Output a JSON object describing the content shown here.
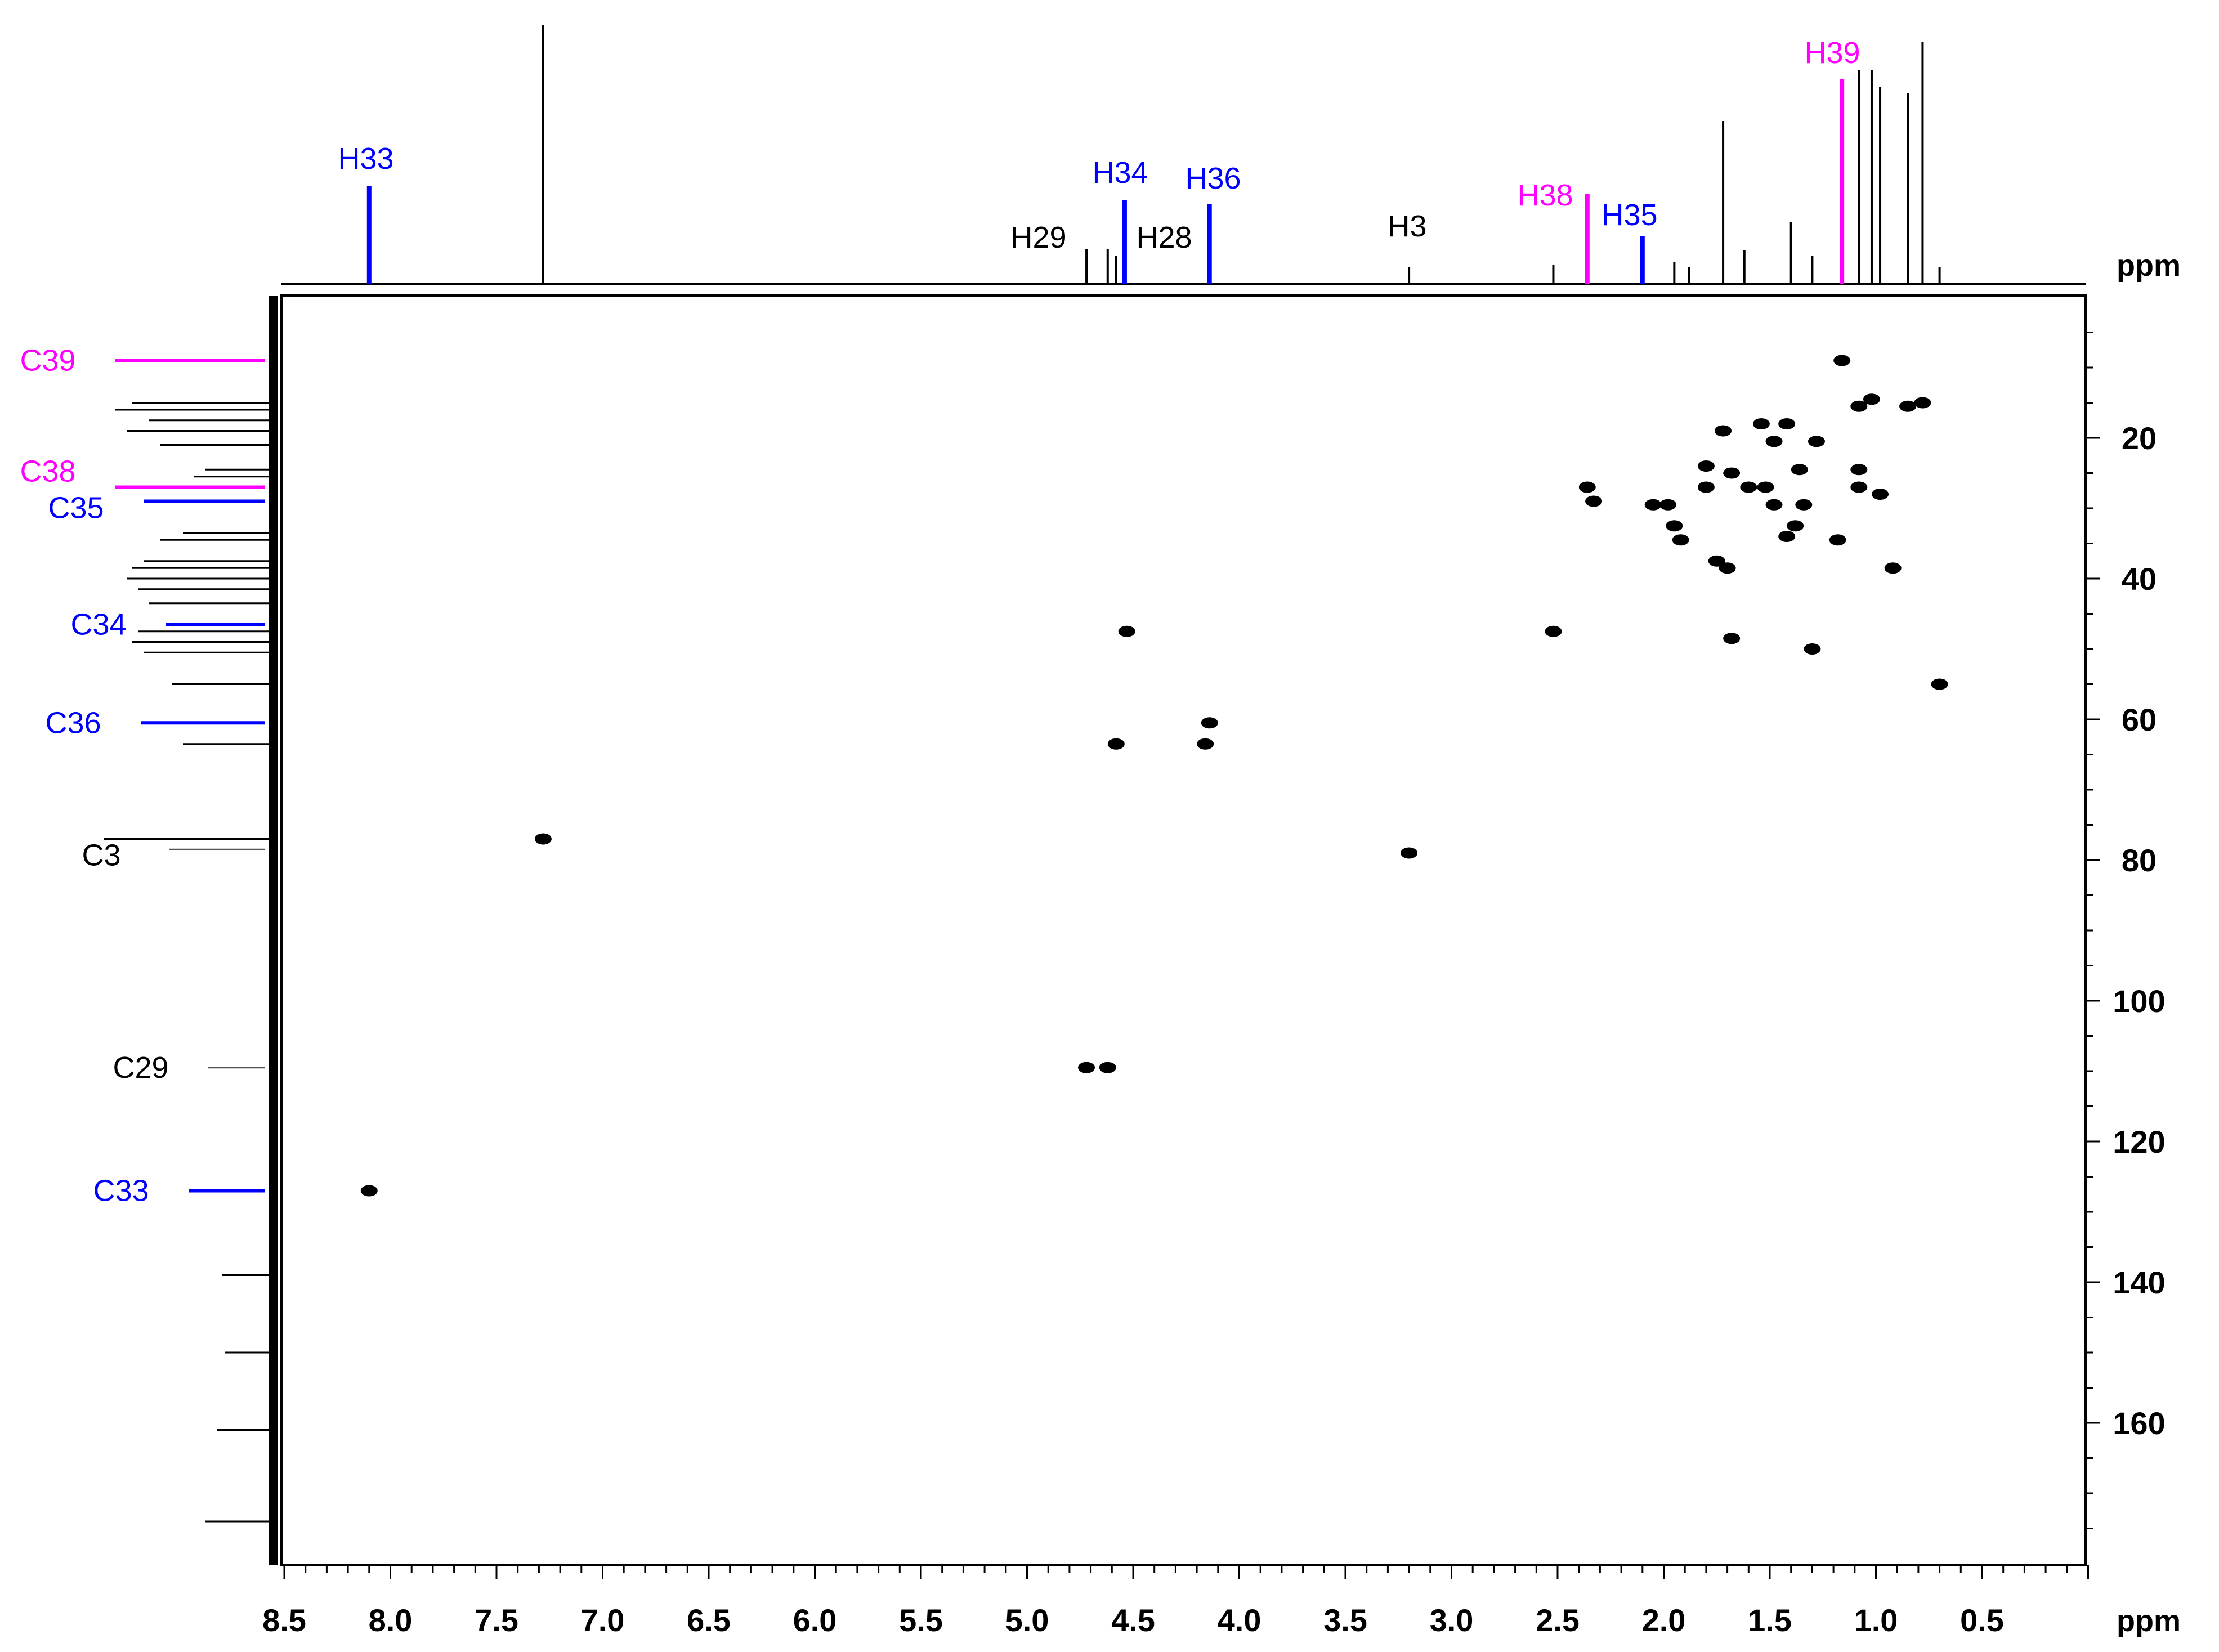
{
  "chart_data": {
    "type": "scatter",
    "subtype": "2D NMR HSQC spectrum",
    "title": "",
    "x_axis": {
      "label": "ppm",
      "reversed": true,
      "range": [
        8.5,
        0.0
      ],
      "ticks": [
        "8.5",
        "8.0",
        "7.5",
        "7.0",
        "6.5",
        "6.0",
        "5.5",
        "5.0",
        "4.5",
        "4.0",
        "3.5",
        "3.0",
        "2.5",
        "2.0",
        "1.5",
        "1.0",
        "0.5"
      ]
    },
    "y_axis": {
      "label": "ppm",
      "position": "right",
      "range": [
        0,
        180
      ],
      "ticks": [
        "20",
        "40",
        "60",
        "80",
        "100",
        "120",
        "140",
        "160"
      ]
    },
    "grid": false,
    "colors": {
      "black": "#000000",
      "blue": "#0000ff",
      "magenta": "#ff00ff"
    },
    "h1_labels": [
      {
        "text": "H33",
        "ppm": 8.1,
        "color": "blue"
      },
      {
        "text": "H34",
        "ppm": 4.54,
        "color": "blue"
      },
      {
        "text": "H36",
        "ppm": 4.14,
        "color": "blue"
      },
      {
        "text": "H29",
        "ppm": 4.92,
        "color": "black"
      },
      {
        "text": "H28",
        "ppm": 4.4,
        "color": "black"
      },
      {
        "text": "H3",
        "ppm": 3.2,
        "color": "black"
      },
      {
        "text": "H38",
        "ppm": 2.36,
        "color": "magenta"
      },
      {
        "text": "H35",
        "ppm": 2.1,
        "color": "blue"
      },
      {
        "text": "H39",
        "ppm": 1.16,
        "color": "magenta"
      }
    ],
    "c13_labels": [
      {
        "text": "C39",
        "ppm": 9.0,
        "color": "magenta"
      },
      {
        "text": "C38",
        "ppm": 27.0,
        "color": "magenta"
      },
      {
        "text": "C35",
        "ppm": 29.0,
        "color": "blue"
      },
      {
        "text": "C34",
        "ppm": 46.5,
        "color": "blue"
      },
      {
        "text": "C36",
        "ppm": 60.5,
        "color": "blue"
      },
      {
        "text": "C3",
        "ppm": 78.5,
        "color": "black"
      },
      {
        "text": "C29",
        "ppm": 109.5,
        "color": "black"
      },
      {
        "text": "C33",
        "ppm": 127.0,
        "color": "blue"
      }
    ],
    "cross_peaks": [
      {
        "x": 8.1,
        "y": 127.0
      },
      {
        "x": 7.28,
        "y": 77.0
      },
      {
        "x": 4.72,
        "y": 109.5
      },
      {
        "x": 4.62,
        "y": 109.5
      },
      {
        "x": 4.53,
        "y": 47.5
      },
      {
        "x": 4.58,
        "y": 63.5
      },
      {
        "x": 4.14,
        "y": 60.5
      },
      {
        "x": 4.16,
        "y": 63.5
      },
      {
        "x": 3.2,
        "y": 79.0
      },
      {
        "x": 2.52,
        "y": 47.5
      },
      {
        "x": 2.36,
        "y": 27.0
      },
      {
        "x": 2.33,
        "y": 29.0
      },
      {
        "x": 1.16,
        "y": 9.0
      },
      {
        "x": 1.02,
        "y": 14.5
      },
      {
        "x": 1.08,
        "y": 15.5
      },
      {
        "x": 0.85,
        "y": 15.5
      },
      {
        "x": 0.78,
        "y": 15.0
      },
      {
        "x": 1.72,
        "y": 19.0
      },
      {
        "x": 1.54,
        "y": 18.0
      },
      {
        "x": 1.42,
        "y": 18.0
      },
      {
        "x": 1.48,
        "y": 20.5
      },
      {
        "x": 1.28,
        "y": 20.5
      },
      {
        "x": 1.8,
        "y": 24.0
      },
      {
        "x": 1.68,
        "y": 25.0
      },
      {
        "x": 1.36,
        "y": 24.5
      },
      {
        "x": 1.08,
        "y": 24.5
      },
      {
        "x": 1.6,
        "y": 27.0
      },
      {
        "x": 1.52,
        "y": 27.0
      },
      {
        "x": 1.08,
        "y": 27.0
      },
      {
        "x": 0.98,
        "y": 28.0
      },
      {
        "x": 1.8,
        "y": 27.0
      },
      {
        "x": 2.05,
        "y": 29.5
      },
      {
        "x": 1.98,
        "y": 29.5
      },
      {
        "x": 1.48,
        "y": 29.5
      },
      {
        "x": 1.34,
        "y": 29.5
      },
      {
        "x": 1.95,
        "y": 32.5
      },
      {
        "x": 1.38,
        "y": 32.5
      },
      {
        "x": 1.92,
        "y": 34.5
      },
      {
        "x": 1.42,
        "y": 34.0
      },
      {
        "x": 1.18,
        "y": 34.5
      },
      {
        "x": 1.75,
        "y": 37.5
      },
      {
        "x": 1.7,
        "y": 38.5
      },
      {
        "x": 0.92,
        "y": 38.5
      },
      {
        "x": 1.68,
        "y": 48.5
      },
      {
        "x": 1.3,
        "y": 50.0
      },
      {
        "x": 0.7,
        "y": 55.0
      }
    ]
  }
}
